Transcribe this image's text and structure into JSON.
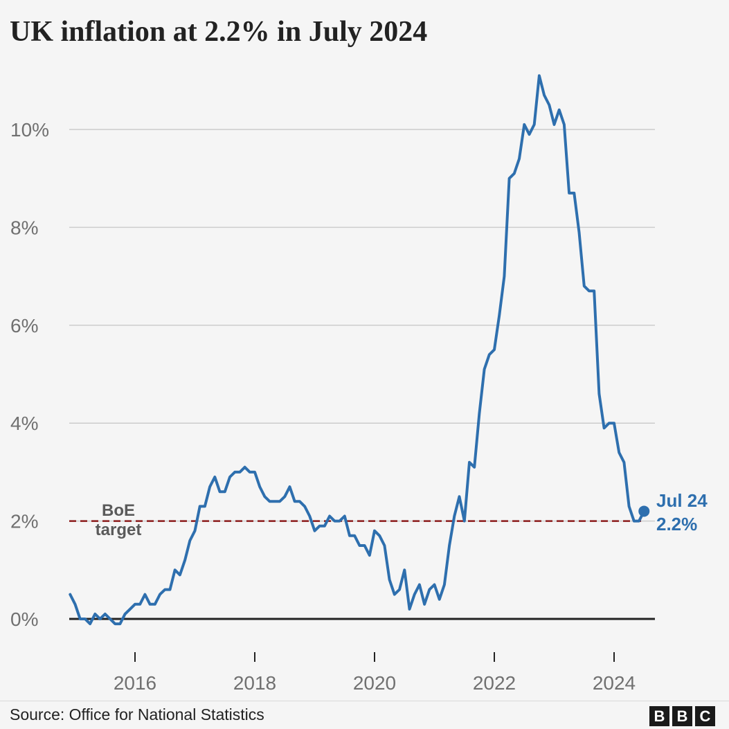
{
  "title": "UK inflation at 2.2% in July 2024",
  "source": "Source: Office for National Statistics",
  "logo": [
    "B",
    "B",
    "C"
  ],
  "colors": {
    "line": "#2e6fae",
    "target": "#8b1a1a",
    "grid": "#cccccc",
    "zero_axis": "#222222",
    "background": "#f5f5f5"
  },
  "chart_data": {
    "type": "line",
    "title": "UK inflation at 2.2% in July 2024",
    "xlabel": "",
    "ylabel": "",
    "y_ticks": [
      "0%",
      "2%",
      "4%",
      "6%",
      "8%",
      "10%"
    ],
    "y_tick_values": [
      0,
      2,
      4,
      6,
      8,
      10
    ],
    "x_ticks": [
      "2016",
      "2018",
      "2020",
      "2022",
      "2024"
    ],
    "ylim": [
      -0.5,
      11.3
    ],
    "xlim": [
      "2014-12",
      "2024-10"
    ],
    "grid": true,
    "target": {
      "value": 2,
      "label_line1": "BoE",
      "label_line2": "target"
    },
    "end_label": {
      "line1": "Jul 24",
      "line2": "2.2%"
    },
    "series": [
      {
        "x": [
          "2014-12",
          "2015-01",
          "2015-02",
          "2015-03",
          "2015-04",
          "2015-05",
          "2015-06",
          "2015-07",
          "2015-08",
          "2015-09",
          "2015-10",
          "2015-11",
          "2015-12",
          "2016-01",
          "2016-02",
          "2016-03",
          "2016-04",
          "2016-05",
          "2016-06",
          "2016-07",
          "2016-08",
          "2016-09",
          "2016-10",
          "2016-11",
          "2016-12",
          "2017-01",
          "2017-02",
          "2017-03",
          "2017-04",
          "2017-05",
          "2017-06",
          "2017-07",
          "2017-08",
          "2017-09",
          "2017-10",
          "2017-11",
          "2017-12",
          "2018-01",
          "2018-02",
          "2018-03",
          "2018-04",
          "2018-05",
          "2018-06",
          "2018-07",
          "2018-08",
          "2018-09",
          "2018-10",
          "2018-11",
          "2018-12",
          "2019-01",
          "2019-02",
          "2019-03",
          "2019-04",
          "2019-05",
          "2019-06",
          "2019-07",
          "2019-08",
          "2019-09",
          "2019-10",
          "2019-11",
          "2019-12",
          "2020-01",
          "2020-02",
          "2020-03",
          "2020-04",
          "2020-05",
          "2020-06",
          "2020-07",
          "2020-08",
          "2020-09",
          "2020-10",
          "2020-11",
          "2020-12",
          "2021-01",
          "2021-02",
          "2021-03",
          "2021-04",
          "2021-05",
          "2021-06",
          "2021-07",
          "2021-08",
          "2021-09",
          "2021-10",
          "2021-11",
          "2021-12",
          "2022-01",
          "2022-02",
          "2022-03",
          "2022-04",
          "2022-05",
          "2022-06",
          "2022-07",
          "2022-08",
          "2022-09",
          "2022-10",
          "2022-11",
          "2022-12",
          "2023-01",
          "2023-02",
          "2023-03",
          "2023-04",
          "2023-05",
          "2023-06",
          "2023-07",
          "2023-08",
          "2023-09",
          "2023-10",
          "2023-11",
          "2023-12",
          "2024-01",
          "2024-02",
          "2024-03",
          "2024-04",
          "2024-05",
          "2024-06",
          "2024-07"
        ],
        "values": [
          0.5,
          0.3,
          0.0,
          0.0,
          -0.1,
          0.1,
          0.0,
          0.1,
          0.0,
          -0.1,
          -0.1,
          0.1,
          0.2,
          0.3,
          0.3,
          0.5,
          0.3,
          0.3,
          0.5,
          0.6,
          0.6,
          1.0,
          0.9,
          1.2,
          1.6,
          1.8,
          2.3,
          2.3,
          2.7,
          2.9,
          2.6,
          2.6,
          2.9,
          3.0,
          3.0,
          3.1,
          3.0,
          3.0,
          2.7,
          2.5,
          2.4,
          2.4,
          2.4,
          2.5,
          2.7,
          2.4,
          2.4,
          2.3,
          2.1,
          1.8,
          1.9,
          1.9,
          2.1,
          2.0,
          2.0,
          2.1,
          1.7,
          1.7,
          1.5,
          1.5,
          1.3,
          1.8,
          1.7,
          1.5,
          0.8,
          0.5,
          0.6,
          1.0,
          0.2,
          0.5,
          0.7,
          0.3,
          0.6,
          0.7,
          0.4,
          0.7,
          1.5,
          2.1,
          2.5,
          2.0,
          3.2,
          3.1,
          4.2,
          5.1,
          5.4,
          5.5,
          6.2,
          7.0,
          9.0,
          9.1,
          9.4,
          10.1,
          9.9,
          10.1,
          11.1,
          10.7,
          10.5,
          10.1,
          10.4,
          10.1,
          8.7,
          8.7,
          7.9,
          6.8,
          6.7,
          6.7,
          4.6,
          3.9,
          4.0,
          4.0,
          3.4,
          3.2,
          2.3,
          2.0,
          2.0,
          2.2
        ]
      }
    ]
  }
}
